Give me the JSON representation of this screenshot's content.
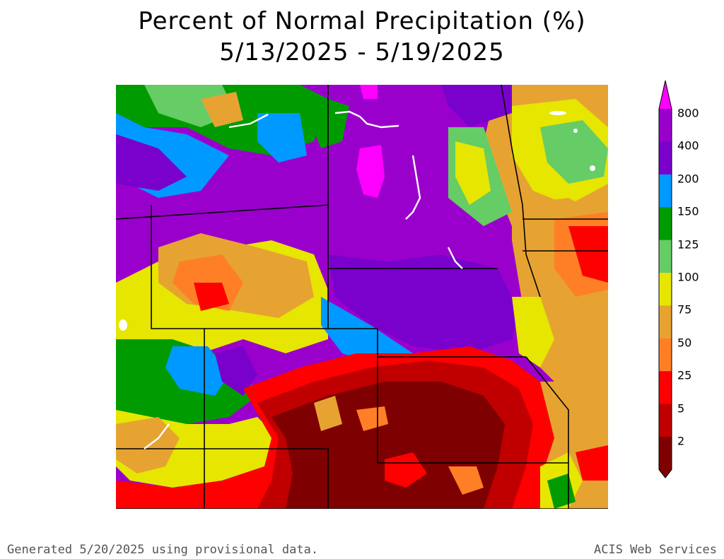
{
  "title": {
    "line1": "Percent of Normal Precipitation (%)",
    "line2": "5/13/2025 - 5/19/2025"
  },
  "legend": {
    "bins": [
      {
        "label": "800",
        "color": "#9a00cc"
      },
      {
        "label": "400",
        "color": "#7a00cc"
      },
      {
        "label": "200",
        "color": "#0099ff"
      },
      {
        "label": "150",
        "color": "#009b00"
      },
      {
        "label": "125",
        "color": "#66cc66"
      },
      {
        "label": "100",
        "color": "#e6e600"
      },
      {
        "label": "75",
        "color": "#e6a332"
      },
      {
        "label": "50",
        "color": "#ff7f27"
      },
      {
        "label": "25",
        "color": "#ff0000"
      },
      {
        "label": "5",
        "color": "#c00000"
      },
      {
        "label": "2",
        "color": "#7f0000"
      }
    ],
    "top_color": "#ff00ff",
    "bottom_color": "#7f0000"
  },
  "footer": {
    "left": "Generated 5/20/2025 using provisional data.",
    "right": "ACIS Web Services"
  },
  "map_palette": {
    "magenta": "#ff00ff",
    "violet": "#9a00cc",
    "purple": "#7a00cc",
    "blue": "#0099ff",
    "green": "#009b00",
    "lightgreen": "#66cc66",
    "yellow": "#e6e600",
    "tan": "#e6a332",
    "orange": "#ff7f27",
    "red": "#ff0000",
    "darkred": "#c00000",
    "maroon": "#7f0000"
  }
}
